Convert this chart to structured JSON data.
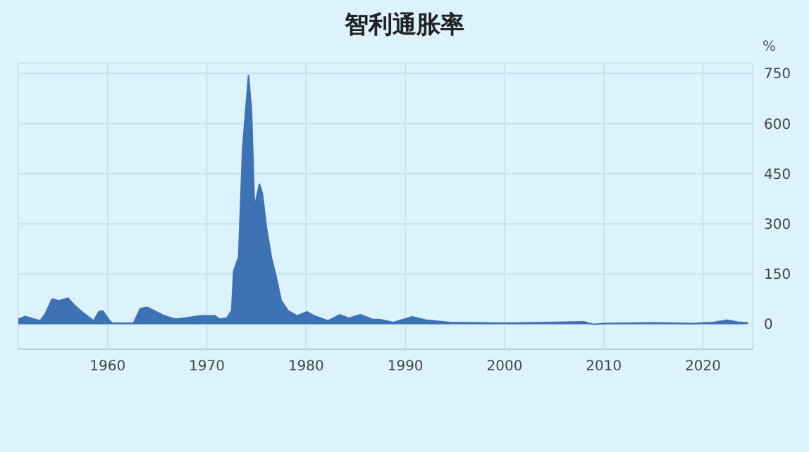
{
  "chart_data": {
    "type": "area",
    "title": "智利通胀率",
    "ylabel": "%",
    "x": [
      1951.0,
      1951.7,
      1953.2,
      1953.7,
      1954.4,
      1955.1,
      1956.0,
      1956.7,
      1957.7,
      1958.6,
      1959.1,
      1959.5,
      1960.2,
      1960.5,
      1962.6,
      1963.3,
      1964.0,
      1964.7,
      1965.7,
      1966.8,
      1967.8,
      1969.4,
      1970.8,
      1971.3,
      1972.0,
      1972.5,
      1972.7,
      1973.2,
      1973.6,
      1974.2,
      1974.5,
      1974.8,
      1975.3,
      1975.6,
      1976.0,
      1976.5,
      1977.0,
      1977.5,
      1978.2,
      1979.1,
      1980.1,
      1980.8,
      1982.2,
      1983.4,
      1984.3,
      1985.5,
      1986.7,
      1987.4,
      1988.8,
      1990.7,
      1992.1,
      1994.5,
      2000,
      2008,
      2009,
      2010,
      2015,
      2019,
      2021,
      2022.5,
      2023.5,
      2024.5
    ],
    "series": [
      {
        "color": "#3d72b4",
        "values": [
          15,
          23,
          10,
          30,
          75,
          70,
          78,
          55,
          30,
          10,
          37,
          40,
          10,
          3,
          3,
          47,
          50,
          40,
          25,
          15,
          18,
          25,
          25,
          15,
          18,
          40,
          160,
          200,
          525,
          745,
          640,
          350,
          420,
          390,
          290,
          200,
          140,
          70,
          40,
          25,
          37,
          25,
          10,
          28,
          18,
          28,
          14,
          14,
          5,
          22,
          12,
          5,
          3,
          7,
          -1,
          2,
          4,
          2,
          5,
          12,
          6,
          4
        ]
      }
    ],
    "xlim": [
      1951,
      2025
    ],
    "xticks": [
      1960,
      1970,
      1980,
      1990,
      2000,
      2010,
      2020
    ],
    "ylim": [
      -75,
      780
    ],
    "yticks": [
      0,
      150,
      300,
      450,
      600,
      750
    ],
    "grid": true
  }
}
